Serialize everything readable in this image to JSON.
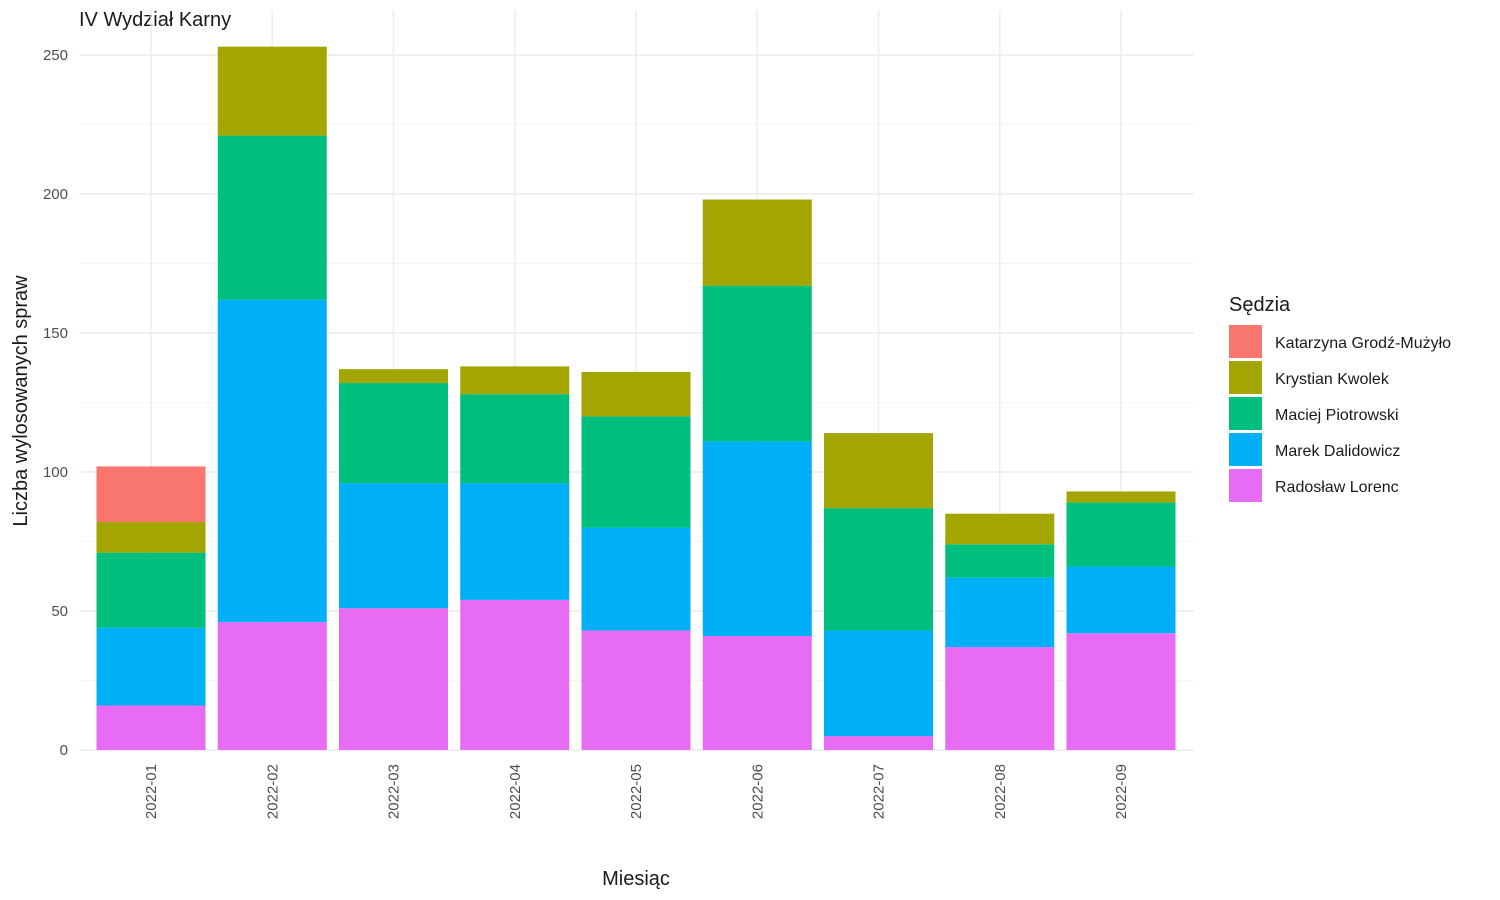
{
  "chart_data": {
    "type": "bar",
    "stacked": true,
    "title": "IV Wydział Karny",
    "xlabel": "Miesiąc",
    "ylabel": "Liczba wylosowanych spraw",
    "ylim": [
      0,
      260
    ],
    "yticks": [
      0,
      50,
      100,
      150,
      200,
      250
    ],
    "grid": true,
    "legend": {
      "title": "Sędzia",
      "position": "right"
    },
    "categories": [
      "2022-01",
      "2022-02",
      "2022-03",
      "2022-04",
      "2022-05",
      "2022-06",
      "2022-07",
      "2022-08",
      "2022-09"
    ],
    "series": [
      {
        "name": "Katarzyna Grodź-Mużyło",
        "color": "#F8766D",
        "values": [
          20,
          0,
          0,
          0,
          0,
          0,
          0,
          0,
          0
        ]
      },
      {
        "name": "Krystian Kwolek",
        "color": "#A3A500",
        "values": [
          11,
          32,
          5,
          10,
          16,
          31,
          27,
          11,
          4
        ]
      },
      {
        "name": "Maciej Piotrowski",
        "color": "#00BF7D",
        "values": [
          27,
          59,
          36,
          32,
          40,
          56,
          44,
          12,
          23
        ]
      },
      {
        "name": "Marek Dalidowicz",
        "color": "#00B0F6",
        "values": [
          28,
          116,
          45,
          42,
          37,
          70,
          38,
          25,
          24
        ]
      },
      {
        "name": "Radosław Lorenc",
        "color": "#E76BF3",
        "values": [
          16,
          46,
          51,
          54,
          43,
          41,
          5,
          37,
          42
        ]
      }
    ]
  }
}
